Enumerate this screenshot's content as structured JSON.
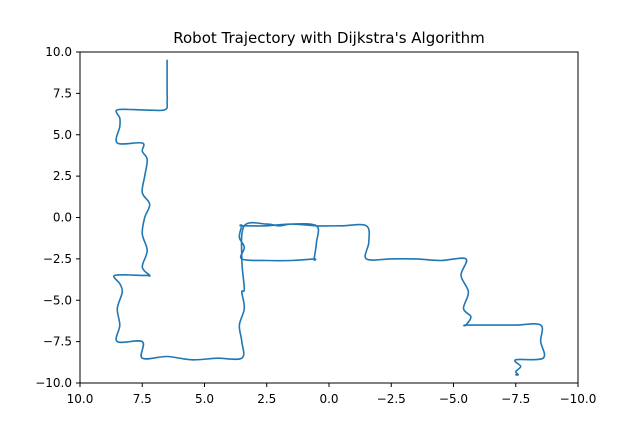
{
  "chart_data": {
    "type": "line",
    "title": "Robot Trajectory with Dijkstra's Algorithm",
    "xlabel": "",
    "ylabel": "",
    "xlim": [
      10.0,
      -10.0
    ],
    "ylim": [
      -10.0,
      10.0
    ],
    "x_inverted": true,
    "grid": false,
    "x_ticks": [
      10.0,
      7.5,
      5.0,
      2.5,
      0.0,
      -2.5,
      -5.0,
      -7.5,
      -10.0
    ],
    "x_tick_labels": [
      "10.0",
      "7.5",
      "5.0",
      "2.5",
      "0.0",
      "−2.5",
      "−5.0",
      "−7.5",
      "−10.0"
    ],
    "y_ticks": [
      10.0,
      7.5,
      5.0,
      2.5,
      0.0,
      -2.5,
      -5.0,
      -7.5,
      -10.0
    ],
    "y_tick_labels": [
      "10.0",
      "7.5",
      "5.0",
      "2.5",
      "0.0",
      "−2.5",
      "−5.0",
      "−7.5",
      "−10.0"
    ],
    "line_color": "#1f77b4",
    "series": [
      {
        "x": [
          6.5,
          6.5,
          6.5,
          6.5,
          6.6,
          7.5,
          8.5,
          8.4,
          8.4,
          8.5,
          7.5,
          7.5,
          7.3,
          7.4,
          7.5,
          7.2,
          7.4,
          7.5,
          7.3,
          7.5,
          7.2,
          7.3,
          7.5,
          8.6,
          8.4,
          8.3,
          8.5,
          8.4,
          8.5,
          7.5,
          7.5,
          6.5,
          5.5,
          4.5,
          3.5,
          3.5,
          3.6,
          3.4,
          3.5,
          3.4,
          3.5,
          3.4,
          2.5,
          2.0,
          1.5,
          0.5,
          0.5,
          0.6,
          0.6,
          1.5,
          2.5,
          3.5,
          3.4,
          3.6,
          3.5,
          3.5,
          2.5,
          1.5,
          0.5,
          -0.5,
          -1.5,
          -1.6,
          -1.5,
          -2.5,
          -3.5,
          -4.5,
          -5.5,
          -5.3,
          -5.6,
          -5.4,
          -5.7,
          -5.5,
          -5.5,
          -6.5,
          -7.5,
          -8.5,
          -8.5,
          -8.6,
          -7.5,
          -7.7,
          -7.5,
          -7.6,
          -7.5
        ],
        "y": [
          9.5,
          8.5,
          7.5,
          7.0,
          6.5,
          6.5,
          6.5,
          6.0,
          5.5,
          4.5,
          4.5,
          4.0,
          3.5,
          2.5,
          1.5,
          0.8,
          0.0,
          -1.0,
          -2.0,
          -3.0,
          -3.5,
          -3.5,
          -3.5,
          -3.5,
          -4.0,
          -4.5,
          -5.5,
          -6.5,
          -7.5,
          -7.5,
          -8.5,
          -8.4,
          -8.6,
          -8.5,
          -8.5,
          -7.5,
          -6.5,
          -5.5,
          -4.5,
          -4.3,
          -2.5,
          -0.5,
          -0.4,
          -0.5,
          -0.4,
          -0.5,
          -1.5,
          -2.5,
          -2.5,
          -2.6,
          -2.6,
          -2.5,
          -1.8,
          -1.2,
          -0.5,
          -0.5,
          -0.5,
          -0.4,
          -0.5,
          -0.5,
          -0.5,
          -1.5,
          -2.5,
          -2.5,
          -2.5,
          -2.6,
          -2.5,
          -3.5,
          -4.5,
          -5.5,
          -6.0,
          -6.5,
          -6.5,
          -6.5,
          -6.5,
          -6.5,
          -7.5,
          -8.5,
          -8.6,
          -9.0,
          -9.3,
          -9.5,
          -9.5
        ]
      }
    ]
  }
}
